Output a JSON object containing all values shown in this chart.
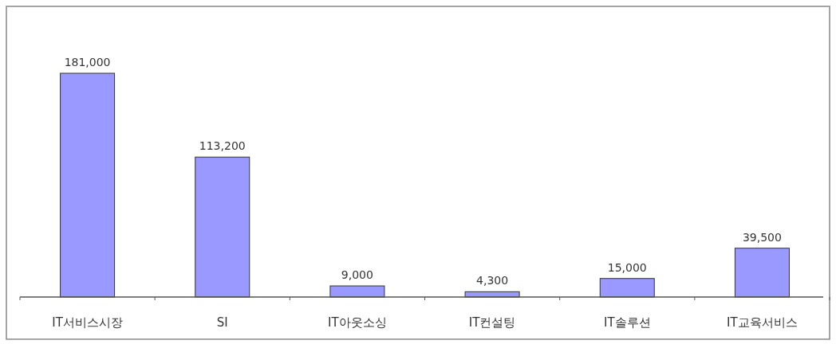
{
  "chart_data": {
    "type": "bar",
    "categories": [
      "IT서비스시장",
      "SI",
      "IT아웃소싱",
      "IT컨설팅",
      "IT솔루션",
      "IT교육서비스"
    ],
    "values": [
      181000,
      113200,
      9000,
      4300,
      15000,
      39500
    ],
    "value_labels": [
      "181,000",
      "113,200",
      "9,000",
      "4,300",
      "15,000",
      "39,500"
    ],
    "color": "#9999ff"
  }
}
